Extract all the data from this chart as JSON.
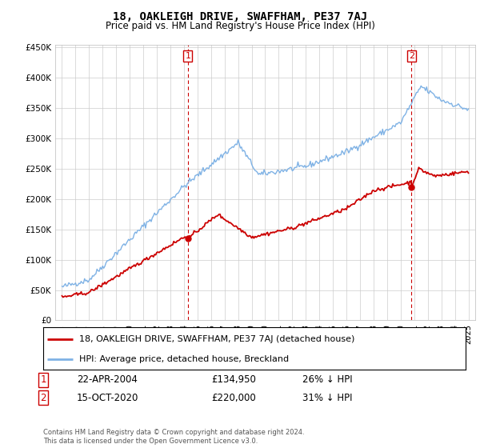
{
  "title": "18, OAKLEIGH DRIVE, SWAFFHAM, PE37 7AJ",
  "subtitle": "Price paid vs. HM Land Registry's House Price Index (HPI)",
  "legend_line1": "18, OAKLEIGH DRIVE, SWAFFHAM, PE37 7AJ (detached house)",
  "legend_line2": "HPI: Average price, detached house, Breckland",
  "footnote": "Contains HM Land Registry data © Crown copyright and database right 2024.\nThis data is licensed under the Open Government Licence v3.0.",
  "transaction1_date": "22-APR-2004",
  "transaction1_price": "£134,950",
  "transaction1_hpi": "26% ↓ HPI",
  "transaction2_date": "15-OCT-2020",
  "transaction2_price": "£220,000",
  "transaction2_hpi": "31% ↓ HPI",
  "sale1_year": 2004.3,
  "sale1_price": 134950,
  "sale2_year": 2020.8,
  "sale2_price": 220000,
  "hpi_color": "#7fb2e5",
  "price_color": "#cc0000",
  "dashed_color": "#cc0000",
  "ylim_min": 0,
  "ylim_max": 450000,
  "yticks": [
    0,
    50000,
    100000,
    150000,
    200000,
    250000,
    300000,
    350000,
    400000,
    450000
  ],
  "xlim_min": 1994.5,
  "xlim_max": 2025.5,
  "background_color": "#ffffff",
  "grid_color": "#cccccc"
}
